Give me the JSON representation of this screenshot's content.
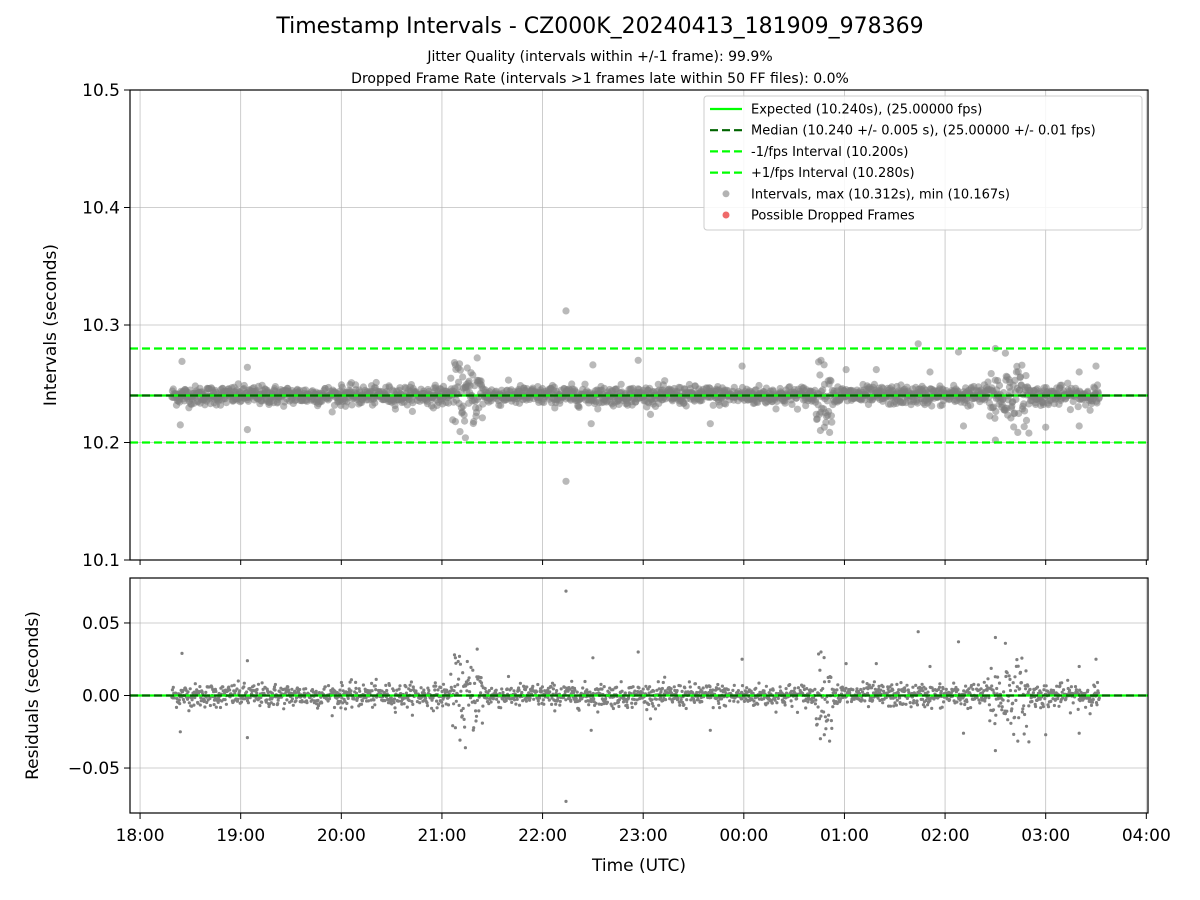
{
  "chart_data": [
    {
      "type": "scatter",
      "title": "Timestamp Intervals - CZ000K_20240413_181909_978369",
      "subtitle_lines": [
        "Jitter Quality (intervals within +/-1 frame): 99.9%",
        "Dropped Frame Rate (intervals >1 frames late within 50 FF files): 0.0%"
      ],
      "xlabel": "",
      "ylabel": "Intervals (seconds)",
      "x_time_range": [
        "17:54",
        "04:01"
      ],
      "ylim": [
        10.1,
        10.5
      ],
      "yticks": [
        "10.1",
        "10.2",
        "10.3",
        "10.4",
        "10.5"
      ],
      "grid": true,
      "legend_position": "top-right",
      "reference_lines": [
        {
          "label": "Expected (10.240s), (25.00000 fps)",
          "y": 10.24,
          "style": "solid",
          "color": "#00ff00"
        },
        {
          "label": "Median (10.240 +/- 0.005 s), (25.00000 +/- 0.01 fps)",
          "y": 10.24,
          "style": "dashed",
          "color": "#006400"
        },
        {
          "label": "-1/fps Interval (10.200s)",
          "y": 10.2,
          "style": "dashed",
          "color": "#00ff00"
        },
        {
          "label": "+1/fps Interval (10.280s)",
          "y": 10.28,
          "style": "dashed",
          "color": "#00ff00"
        }
      ],
      "series": [
        {
          "name": "Intervals, max (10.312s), min (10.167s)",
          "color": "#808080",
          "time_range": [
            "18:19",
            "03:32"
          ],
          "center": 10.24,
          "typical_spread": 0.005,
          "max": 10.312,
          "min": 10.167,
          "outliers": [
            {
              "x": "22:14",
              "y": 10.312
            },
            {
              "x": "22:14",
              "y": 10.167
            },
            {
              "x": "01:44",
              "y": 10.284
            },
            {
              "x": "02:30",
              "y": 10.28
            },
            {
              "x": "02:36",
              "y": 10.276
            },
            {
              "x": "02:08",
              "y": 10.277
            },
            {
              "x": "18:24",
              "y": 10.215
            },
            {
              "x": "18:25",
              "y": 10.269
            },
            {
              "x": "19:04",
              "y": 10.211
            },
            {
              "x": "19:04",
              "y": 10.264
            },
            {
              "x": "21:14",
              "y": 10.204
            },
            {
              "x": "21:21",
              "y": 10.272
            },
            {
              "x": "21:08",
              "y": 10.266
            },
            {
              "x": "22:29",
              "y": 10.216
            },
            {
              "x": "22:30",
              "y": 10.266
            },
            {
              "x": "22:57",
              "y": 10.27
            },
            {
              "x": "23:40",
              "y": 10.216
            },
            {
              "x": "23:59",
              "y": 10.265
            },
            {
              "x": "00:46",
              "y": 10.27
            },
            {
              "x": "00:48",
              "y": 10.213
            },
            {
              "x": "01:01",
              "y": 10.262
            },
            {
              "x": "01:19",
              "y": 10.262
            },
            {
              "x": "01:51",
              "y": 10.26
            },
            {
              "x": "02:11",
              "y": 10.214
            },
            {
              "x": "02:30",
              "y": 10.202
            },
            {
              "x": "02:50",
              "y": 10.208
            },
            {
              "x": "03:00",
              "y": 10.213
            },
            {
              "x": "03:20",
              "y": 10.214
            },
            {
              "x": "03:20",
              "y": 10.26
            },
            {
              "x": "03:30",
              "y": 10.265
            }
          ]
        },
        {
          "name": "Possible Dropped Frames",
          "color": "#ef6a6a",
          "points": []
        }
      ]
    },
    {
      "type": "scatter",
      "xlabel": "Time (UTC)",
      "ylabel": "Residuals (seconds)",
      "x_time_range": [
        "17:54",
        "04:01"
      ],
      "xticks": [
        "18:00",
        "19:00",
        "20:00",
        "21:00",
        "22:00",
        "23:00",
        "00:00",
        "01:00",
        "02:00",
        "03:00",
        "04:00"
      ],
      "ylim": [
        -0.081,
        0.081
      ],
      "yticks": [
        "−0.05",
        "0.00",
        "0.05"
      ],
      "grid": true,
      "reference_lines": [
        {
          "y": 0.0,
          "style": "solid",
          "color": "#00ff00"
        },
        {
          "y": 0.0,
          "style": "dashed",
          "color": "#006400"
        }
      ],
      "series": [
        {
          "color": "#808080",
          "time_range": [
            "18:19",
            "03:32"
          ],
          "center": 0.0,
          "typical_spread": 0.005,
          "max": 0.072,
          "min": -0.073
        }
      ]
    }
  ]
}
